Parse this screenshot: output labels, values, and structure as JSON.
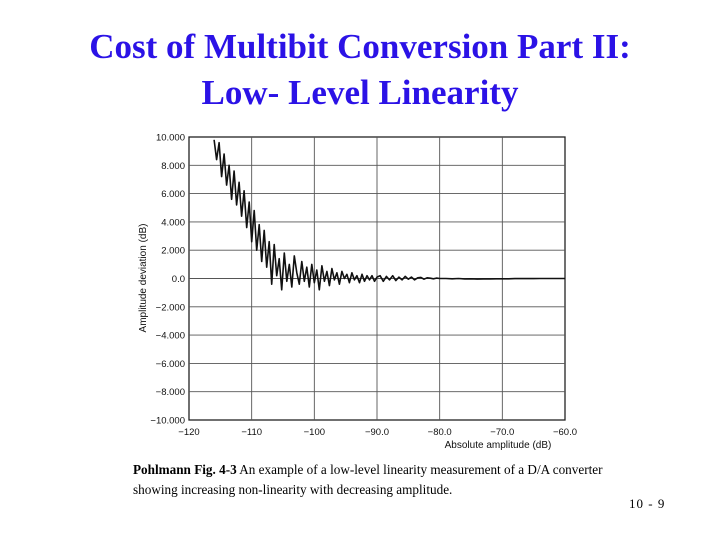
{
  "slide": {
    "title_line1": "Cost of Multibit Conversion Part II:",
    "title_line2": "Low- Level Linearity",
    "caption_lead": "Pohlmann Fig. 4-3",
    "caption_text": " An example of a low-level linearity measurement of a D/A converter showing increasing non-linearity with decreasing amplitude.",
    "slide_number": "10 - 9",
    "title_color": "#2b12e6"
  },
  "chart_data": {
    "type": "line",
    "title": "",
    "xlabel": "Absolute amplitude (dB)",
    "ylabel": "Amplitude deviation (dB)",
    "xlim": [
      -120,
      -60
    ],
    "ylim": [
      -10,
      10
    ],
    "x_ticks": [
      -120,
      -110,
      -100,
      -90,
      -80,
      -70,
      -60
    ],
    "x_tick_labels": [
      "−120",
      "−110",
      "−100",
      "−90.0",
      "−80.0",
      "−70.0",
      "−60.0"
    ],
    "y_ticks": [
      10,
      8,
      6,
      4,
      2,
      0,
      -2,
      -4,
      -6,
      -8,
      -10
    ],
    "y_tick_labels": [
      "10.000",
      "8.000",
      "6.000",
      "4.000",
      "2.000",
      "0.0",
      "−2.000",
      "−4.000",
      "−6.000",
      "−8.000",
      "−10.000"
    ],
    "grid": true,
    "series": [
      {
        "name": "Amplitude deviation",
        "color": "#111111",
        "x": [
          -116.0,
          -115.6,
          -115.2,
          -114.8,
          -114.4,
          -114.0,
          -113.6,
          -113.2,
          -112.8,
          -112.4,
          -112.0,
          -111.6,
          -111.2,
          -110.8,
          -110.4,
          -110.0,
          -109.6,
          -109.2,
          -108.8,
          -108.4,
          -108.0,
          -107.6,
          -107.2,
          -106.8,
          -106.4,
          -106.0,
          -105.6,
          -105.2,
          -104.8,
          -104.4,
          -104.0,
          -103.6,
          -103.2,
          -102.8,
          -102.4,
          -102.0,
          -101.6,
          -101.2,
          -100.8,
          -100.4,
          -100.0,
          -99.6,
          -99.2,
          -98.8,
          -98.4,
          -98.0,
          -97.6,
          -97.2,
          -96.8,
          -96.4,
          -96.0,
          -95.6,
          -95.2,
          -94.8,
          -94.4,
          -94.0,
          -93.6,
          -93.2,
          -92.8,
          -92.4,
          -92.0,
          -91.6,
          -91.2,
          -90.8,
          -90.4,
          -90.0,
          -89.5,
          -89.0,
          -88.5,
          -88.0,
          -87.5,
          -87.0,
          -86.5,
          -86.0,
          -85.5,
          -85.0,
          -84.5,
          -84.0,
          -83.5,
          -83.0,
          -82.5,
          -82.0,
          -81.5,
          -81.0,
          -80.5,
          -80.0,
          -79.0,
          -78.0,
          -77.0,
          -76.0,
          -75.0,
          -74.0,
          -73.0,
          -72.0,
          -71.0,
          -70.0,
          -69.0,
          -68.0,
          -67.0,
          -66.0,
          -65.0,
          -64.0,
          -63.0,
          -62.0,
          -61.0,
          -60.0
        ],
        "values": [
          9.8,
          8.4,
          9.6,
          7.2,
          8.8,
          6.6,
          8.0,
          5.6,
          7.6,
          5.2,
          6.8,
          4.4,
          6.2,
          3.6,
          5.4,
          2.6,
          4.8,
          2.0,
          3.8,
          1.2,
          3.4,
          0.8,
          2.6,
          -0.4,
          2.4,
          0.2,
          1.4,
          -0.8,
          1.8,
          -0.2,
          1.0,
          -0.6,
          1.6,
          0.4,
          -0.4,
          1.2,
          -0.2,
          0.8,
          -0.6,
          1.0,
          -0.3,
          0.6,
          -0.8,
          0.9,
          -0.2,
          0.5,
          -0.5,
          0.7,
          -0.1,
          0.4,
          -0.4,
          0.5,
          0.0,
          0.3,
          -0.3,
          0.4,
          -0.1,
          0.2,
          -0.3,
          0.3,
          -0.2,
          0.2,
          -0.1,
          0.2,
          -0.2,
          0.1,
          0.2,
          -0.2,
          0.15,
          -0.1,
          0.2,
          -0.15,
          0.1,
          -0.1,
          0.15,
          -0.05,
          0.1,
          -0.1,
          0.05,
          0.08,
          -0.05,
          0.05,
          0.02,
          -0.02,
          0.03,
          0.0,
          0.0,
          -0.02,
          0.0,
          -0.03,
          -0.02,
          -0.04,
          -0.03,
          -0.03,
          -0.02,
          -0.02,
          -0.02,
          -0.01,
          -0.01,
          -0.01,
          -0.01,
          0.0,
          0.0,
          0.0,
          0.0,
          0.0
        ]
      }
    ]
  }
}
